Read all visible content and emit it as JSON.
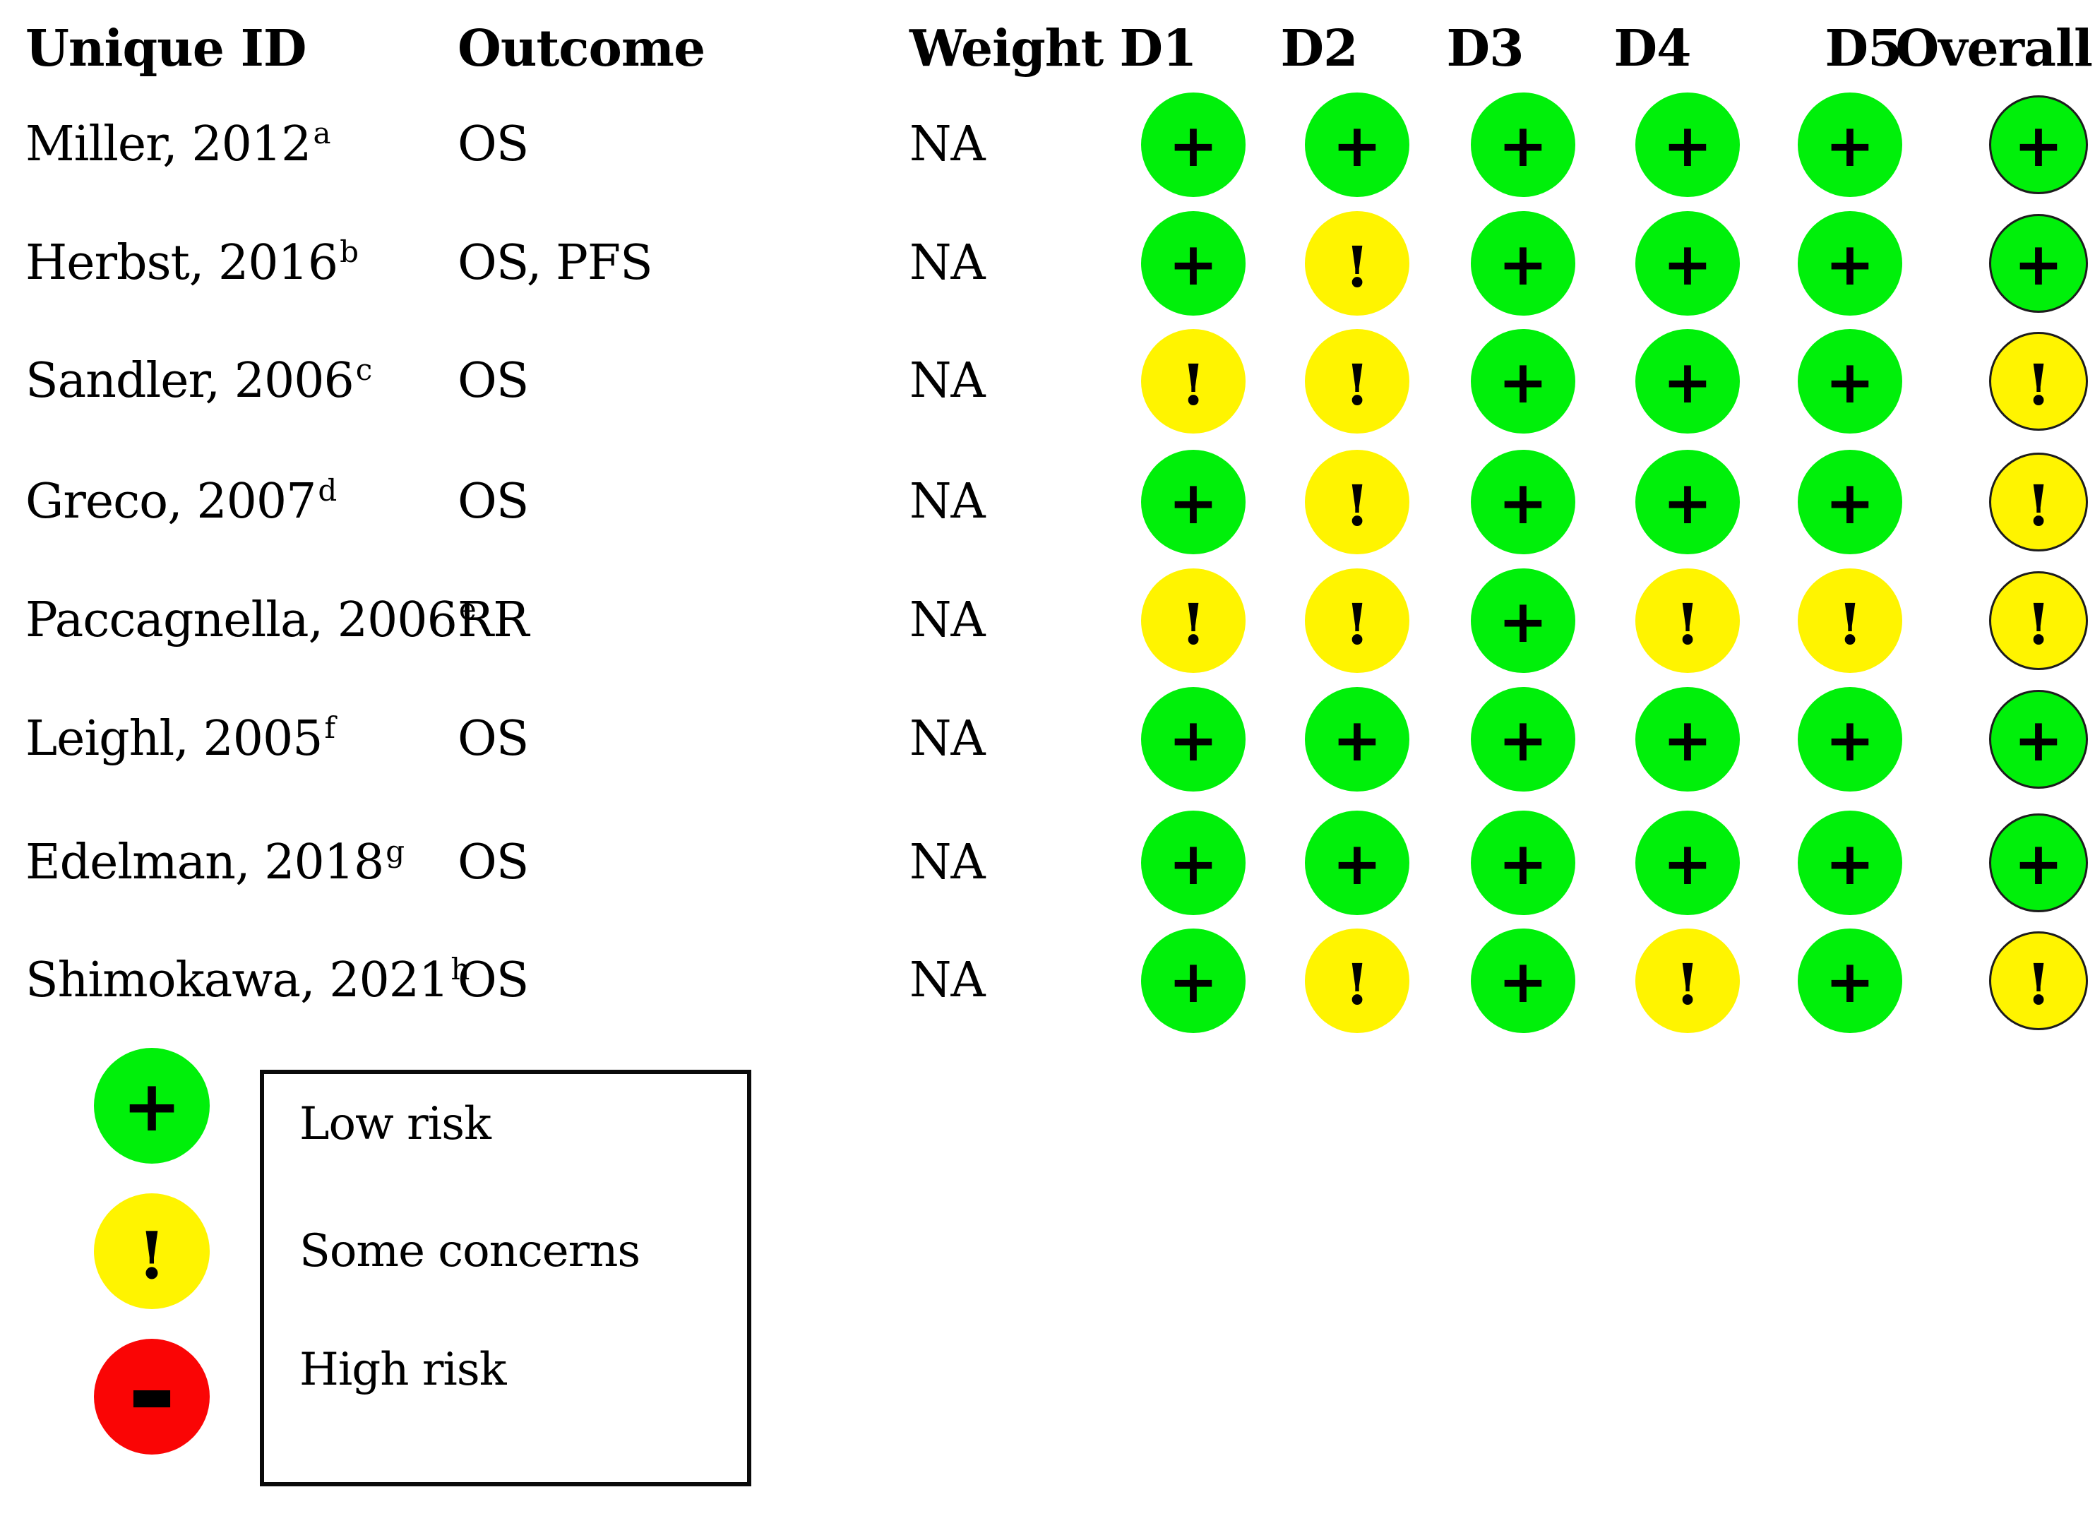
{
  "chart_data": {
    "type": "table",
    "subtype": "risk-of-bias-traffic-light-plot",
    "columns": [
      "Unique ID",
      "Outcome",
      "Weight",
      "D1",
      "D2",
      "D3",
      "D4",
      "D5",
      "Overall"
    ],
    "rows": [
      {
        "unique_id": "Miller, 2012",
        "sup": "a",
        "outcome": "OS",
        "weight": "NA",
        "judgements": {
          "d1": "low",
          "d2": "low",
          "d3": "low",
          "d4": "low",
          "d5": "low",
          "overall": "low"
        }
      },
      {
        "unique_id": "Herbst, 2016",
        "sup": "b",
        "outcome": "OS, PFS",
        "weight": "NA",
        "judgements": {
          "d1": "low",
          "d2": "some",
          "d3": "low",
          "d4": "low",
          "d5": "low",
          "overall": "low"
        }
      },
      {
        "unique_id": "Sandler, 2006",
        "sup": "c",
        "outcome": "OS",
        "weight": "NA",
        "judgements": {
          "d1": "some",
          "d2": "some",
          "d3": "low",
          "d4": "low",
          "d5": "low",
          "overall": "some"
        }
      },
      {
        "unique_id": "Greco, 2007",
        "sup": "d",
        "outcome": "OS",
        "weight": "NA",
        "judgements": {
          "d1": "low",
          "d2": "some",
          "d3": "low",
          "d4": "low",
          "d5": "low",
          "overall": "some"
        }
      },
      {
        "unique_id": "Paccagnella, 2006",
        "sup": "e",
        "outcome": "RR",
        "weight": "NA",
        "judgements": {
          "d1": "some",
          "d2": "some",
          "d3": "low",
          "d4": "some",
          "d5": "some",
          "overall": "some"
        }
      },
      {
        "unique_id": "Leighl, 2005",
        "sup": "f",
        "outcome": "OS",
        "weight": "NA",
        "judgements": {
          "d1": "low",
          "d2": "low",
          "d3": "low",
          "d4": "low",
          "d5": "low",
          "overall": "low"
        }
      },
      {
        "unique_id": "Edelman, 2018",
        "sup": "g",
        "outcome": "OS",
        "weight": "NA",
        "judgements": {
          "d1": "low",
          "d2": "low",
          "d3": "low",
          "d4": "low",
          "d5": "low",
          "overall": "low"
        }
      },
      {
        "unique_id": "Shimokawa, 2021",
        "sup": "h",
        "outcome": "OS",
        "weight": "NA",
        "judgements": {
          "d1": "low",
          "d2": "some",
          "d3": "low",
          "d4": "some",
          "d5": "low",
          "overall": "some"
        }
      }
    ],
    "judgement_symbols": {
      "low": "+",
      "some": "!",
      "high": "-"
    },
    "judgement_colors": {
      "low": "#00f00a",
      "some": "#fff400",
      "high": "#fa0505"
    },
    "legend": [
      {
        "judgement": "low",
        "symbol": "+",
        "label": "Low risk"
      },
      {
        "judgement": "some",
        "symbol": "!",
        "label": "Some concerns"
      },
      {
        "judgement": "high",
        "symbol": "-",
        "label": "High risk"
      }
    ]
  }
}
